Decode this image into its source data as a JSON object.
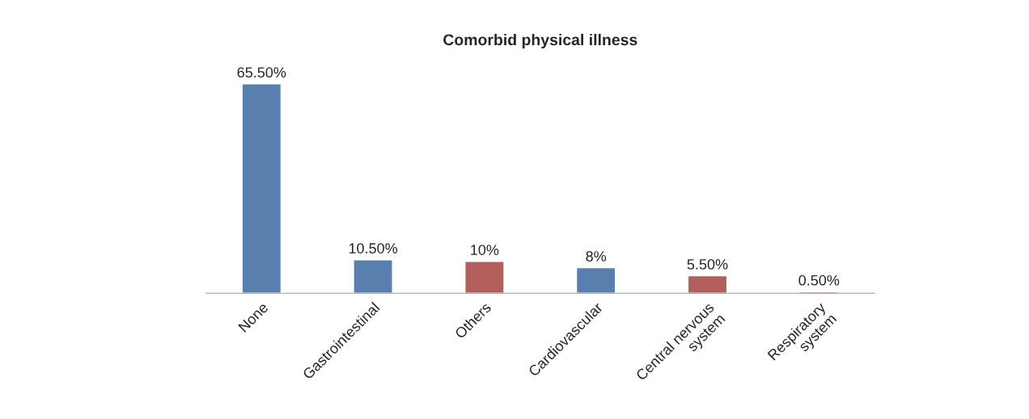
{
  "chart_data": {
    "type": "bar",
    "title": "Comorbid physical illness",
    "categories": [
      "None",
      "Gastrointestinal",
      "Others",
      "Cardiovascular",
      "Central nervous\nsystem",
      "Respiratory\nsystem"
    ],
    "values": [
      65.5,
      10.5,
      10,
      8,
      5.5,
      0.5
    ],
    "colors": [
      "#4a7ebb",
      "#4a7ebb",
      "#c0504d",
      "#4a7ebb",
      "#c0504d",
      "#c0504d"
    ],
    "value_labels": [
      "65.50%",
      "10.50%",
      "10%",
      "8%",
      "5.50%",
      "0.50%"
    ],
    "grid": false,
    "legend": false
  }
}
